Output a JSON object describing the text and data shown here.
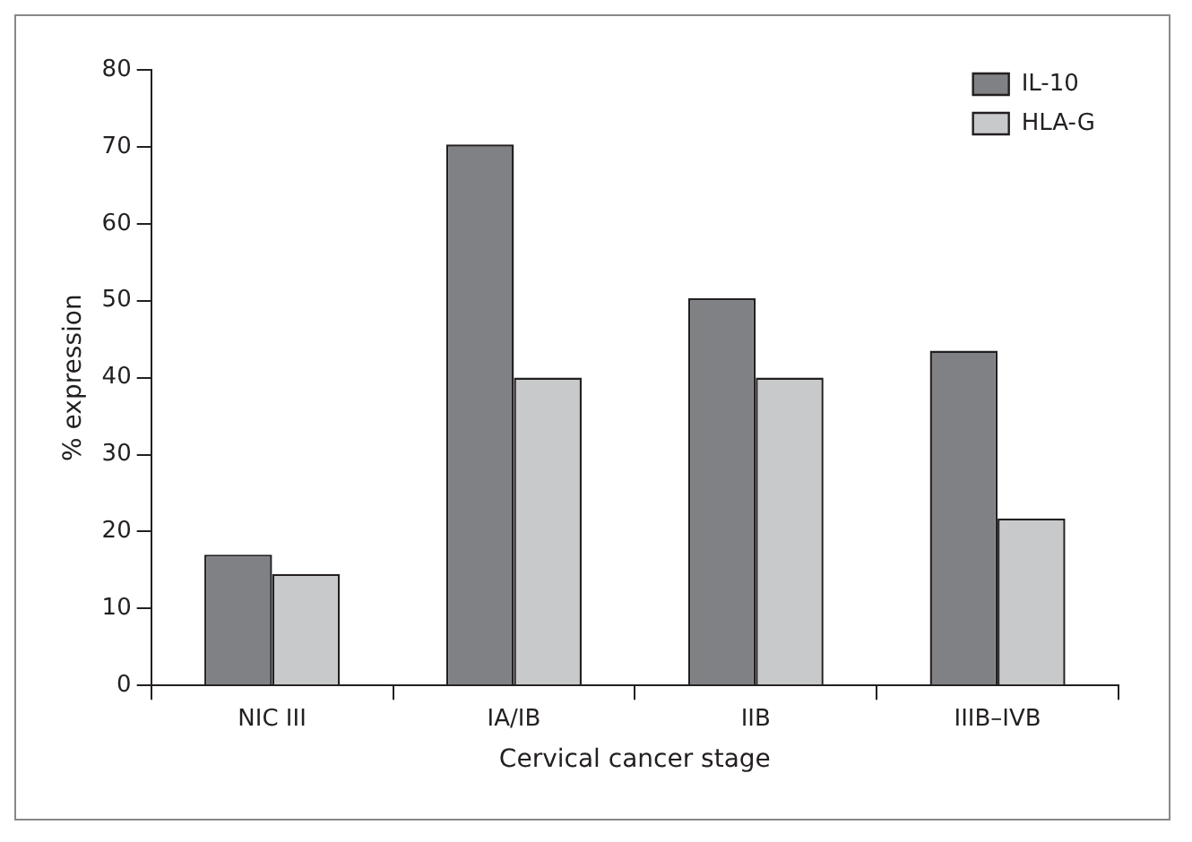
{
  "chart_data": {
    "type": "bar",
    "xlabel": "Cervical cancer stage",
    "ylabel": "% expression",
    "categories": [
      "NIC III",
      "IA/IB",
      "IIB",
      "IIIB–IVB"
    ],
    "series": [
      {
        "name": "IL-10",
        "color": "#808184",
        "values": [
          17,
          70.3,
          50.3,
          43.5
        ]
      },
      {
        "name": "HLA-G",
        "color": "#c8c9cb",
        "values": [
          14.5,
          40,
          40,
          21.7
        ]
      }
    ],
    "ylim": [
      0,
      80
    ],
    "yticks": [
      0,
      10,
      20,
      30,
      40,
      50,
      60,
      70,
      80
    ],
    "grid": false,
    "legend": "top right"
  }
}
